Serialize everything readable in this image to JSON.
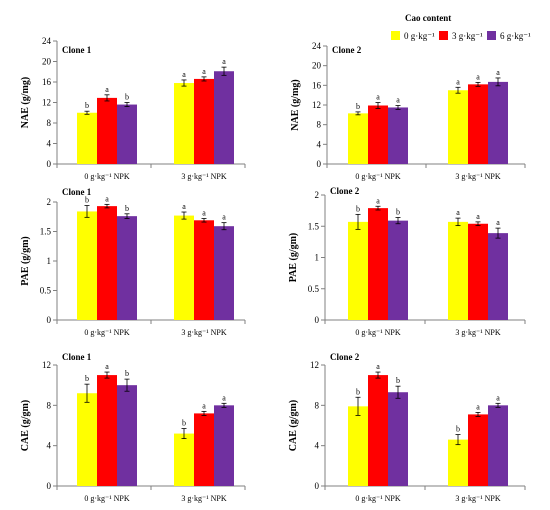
{
  "legend": {
    "title": "Cao content",
    "items": [
      {
        "label": "0 g·kg⁻¹",
        "color": "#ffff00"
      },
      {
        "label": "3 g·kg⁻¹",
        "color": "#ff0000"
      },
      {
        "label": "6 g·kg⁻¹",
        "color": "#7030a0"
      }
    ]
  },
  "colors": {
    "axis": "#808080",
    "errorbar": "#000000"
  },
  "chart_data": [
    {
      "type": "bar",
      "title": "Clone 1",
      "ylabel": "NAE (g/mg)",
      "categories": [
        "0 g·kg⁻¹ NPK",
        "3 g·kg⁻¹ NPK"
      ],
      "ylim": [
        0,
        24
      ],
      "yticks": [
        0,
        4,
        8,
        12,
        16,
        20,
        24
      ],
      "ytick_labels": [
        "0",
        "4",
        "8",
        "12",
        "16",
        "20",
        "24"
      ],
      "series": [
        {
          "values": [
            10.0,
            15.8
          ],
          "errors": [
            0.3,
            0.6
          ],
          "letters": [
            "b",
            "a"
          ]
        },
        {
          "values": [
            12.9,
            16.6
          ],
          "errors": [
            0.6,
            0.4
          ],
          "letters": [
            "a",
            "a"
          ]
        },
        {
          "values": [
            11.6,
            18.1
          ],
          "errors": [
            0.4,
            0.8
          ],
          "letters": [
            "b",
            "a"
          ]
        }
      ]
    },
    {
      "type": "bar",
      "title": "Clone 2",
      "ylabel": "NAE (g/mg)",
      "categories": [
        "0 g·kg⁻¹ NPK",
        "3 g·kg⁻¹ NPK"
      ],
      "ylim": [
        0,
        24
      ],
      "yticks": [
        0,
        4,
        8,
        12,
        16,
        20,
        24
      ],
      "ytick_labels": [
        "0",
        "4",
        "8",
        "12",
        "16",
        "20",
        "24"
      ],
      "series": [
        {
          "values": [
            10.3,
            15.0
          ],
          "errors": [
            0.3,
            0.6
          ],
          "letters": [
            "b",
            "a"
          ]
        },
        {
          "values": [
            11.9,
            16.2
          ],
          "errors": [
            0.6,
            0.4
          ],
          "letters": [
            "a",
            "a"
          ]
        },
        {
          "values": [
            11.5,
            16.7
          ],
          "errors": [
            0.4,
            0.8
          ],
          "letters": [
            "a",
            "a"
          ]
        }
      ]
    },
    {
      "type": "bar",
      "title": "Clone 1",
      "ylabel": "PAE (g/gm)",
      "categories": [
        "0 g·kg⁻¹ NPK",
        "3 g·kg⁻¹ NPK"
      ],
      "ylim": [
        0,
        2
      ],
      "yticks": [
        0,
        0.5,
        1,
        1.5,
        2
      ],
      "ytick_labels": [
        "0",
        "0.5",
        "1",
        "1.5",
        "2"
      ],
      "series": [
        {
          "values": [
            1.84,
            1.77
          ],
          "errors": [
            0.1,
            0.06
          ],
          "letters": [
            "b",
            "a"
          ]
        },
        {
          "values": [
            1.93,
            1.69
          ],
          "errors": [
            0.03,
            0.03
          ],
          "letters": [
            "a",
            "a"
          ]
        },
        {
          "values": [
            1.76,
            1.59
          ],
          "errors": [
            0.04,
            0.06
          ],
          "letters": [
            "b",
            "a"
          ]
        }
      ]
    },
    {
      "type": "bar",
      "title": "Clone 2",
      "ylabel": "PAE (g/gm)",
      "categories": [
        "0 g·kg⁻¹ NPK",
        "3 g·kg⁻¹ NPK"
      ],
      "ylim": [
        0,
        2
      ],
      "yticks": [
        0,
        0.5,
        1,
        1.5,
        2
      ],
      "ytick_labels": [
        "0",
        "0.5",
        "1",
        "1.5",
        "2"
      ],
      "series": [
        {
          "values": [
            1.57,
            1.57
          ],
          "errors": [
            0.12,
            0.06
          ],
          "letters": [
            "b",
            "a"
          ]
        },
        {
          "values": [
            1.79,
            1.54
          ],
          "errors": [
            0.03,
            0.03
          ],
          "letters": [
            "a",
            "a"
          ]
        },
        {
          "values": [
            1.59,
            1.39
          ],
          "errors": [
            0.05,
            0.08
          ],
          "letters": [
            "b",
            "a"
          ]
        }
      ]
    },
    {
      "type": "bar",
      "title": "Clone 1",
      "ylabel": "CAE (g/gm)",
      "categories": [
        "0 g·kg⁻¹ NPK",
        "3 g·kg⁻¹ NPK"
      ],
      "ylim": [
        0,
        12
      ],
      "yticks": [
        0,
        4,
        8,
        12
      ],
      "ytick_labels": [
        "0",
        "4",
        "8",
        "12"
      ],
      "series": [
        {
          "values": [
            9.2,
            5.2
          ],
          "errors": [
            0.9,
            0.5
          ],
          "letters": [
            "b",
            "b"
          ]
        },
        {
          "values": [
            11.0,
            7.2
          ],
          "errors": [
            0.3,
            0.2
          ],
          "letters": [
            "a",
            "a"
          ]
        },
        {
          "values": [
            10.0,
            8.0
          ],
          "errors": [
            0.6,
            0.2
          ],
          "letters": [
            "b",
            "a"
          ]
        }
      ]
    },
    {
      "type": "bar",
      "title": "Clone 2",
      "ylabel": "CAE (g/gm)",
      "categories": [
        "0 g·kg⁻¹ NPK",
        "3 g·kg⁻¹ NPK"
      ],
      "ylim": [
        0,
        12
      ],
      "yticks": [
        0,
        4,
        8,
        12
      ],
      "ytick_labels": [
        "0",
        "4",
        "8",
        "12"
      ],
      "series": [
        {
          "values": [
            7.9,
            4.6
          ],
          "errors": [
            0.9,
            0.5
          ],
          "letters": [
            "b",
            "b"
          ]
        },
        {
          "values": [
            11.0,
            7.1
          ],
          "errors": [
            0.3,
            0.2
          ],
          "letters": [
            "a",
            "a"
          ]
        },
        {
          "values": [
            9.3,
            8.0
          ],
          "errors": [
            0.6,
            0.2
          ],
          "letters": [
            "b",
            "a"
          ]
        }
      ]
    }
  ]
}
